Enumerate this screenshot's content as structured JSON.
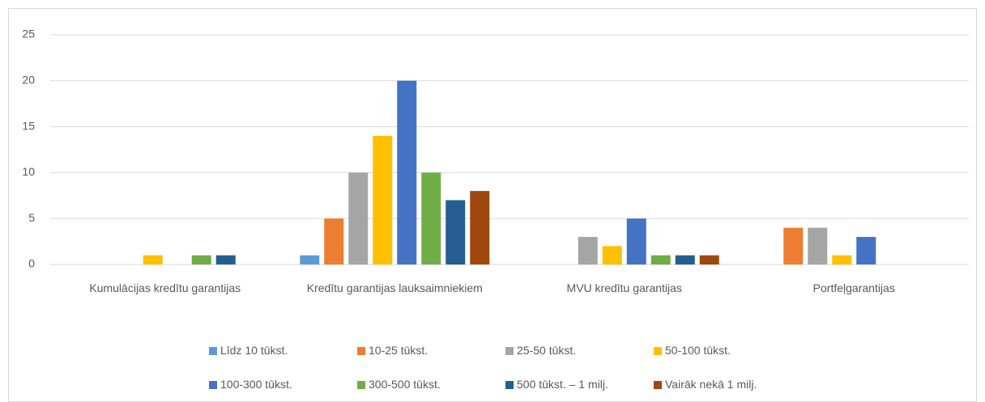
{
  "chart_data": {
    "type": "bar",
    "categories": [
      "Kumulācijas kredītu garantijas",
      "Kredītu garantijas lauksaimniekiem",
      "MVU kredītu garantijas",
      "Portfeļgarantijas"
    ],
    "series": [
      {
        "name": "Līdz 10 tūkst.",
        "color": "#5b9bd5",
        "values": [
          0,
          1,
          0,
          0
        ]
      },
      {
        "name": "10-25 tūkst.",
        "color": "#ed7d31",
        "values": [
          0,
          5,
          0,
          4
        ]
      },
      {
        "name": "25-50 tūkst.",
        "color": "#a5a5a5",
        "values": [
          0,
          10,
          3,
          4
        ]
      },
      {
        "name": "50-100 tūkst.",
        "color": "#ffc000",
        "values": [
          1,
          14,
          2,
          1
        ]
      },
      {
        "name": "100-300 tūkst.",
        "color": "#4472c4",
        "values": [
          0,
          20,
          5,
          3
        ]
      },
      {
        "name": "300-500 tūkst.",
        "color": "#70ad47",
        "values": [
          1,
          10,
          1,
          0
        ]
      },
      {
        "name": "500 tūkst. – 1 milj.",
        "color": "#255e91",
        "values": [
          1,
          7,
          1,
          0
        ]
      },
      {
        "name": "Vairāk nekā 1 milj.",
        "color": "#9e480e",
        "values": [
          0,
          8,
          1,
          0
        ]
      }
    ],
    "ylim": [
      0,
      25
    ],
    "yticks": [
      0,
      5,
      10,
      15,
      20,
      25
    ],
    "grid": true,
    "legend": "bottom"
  }
}
